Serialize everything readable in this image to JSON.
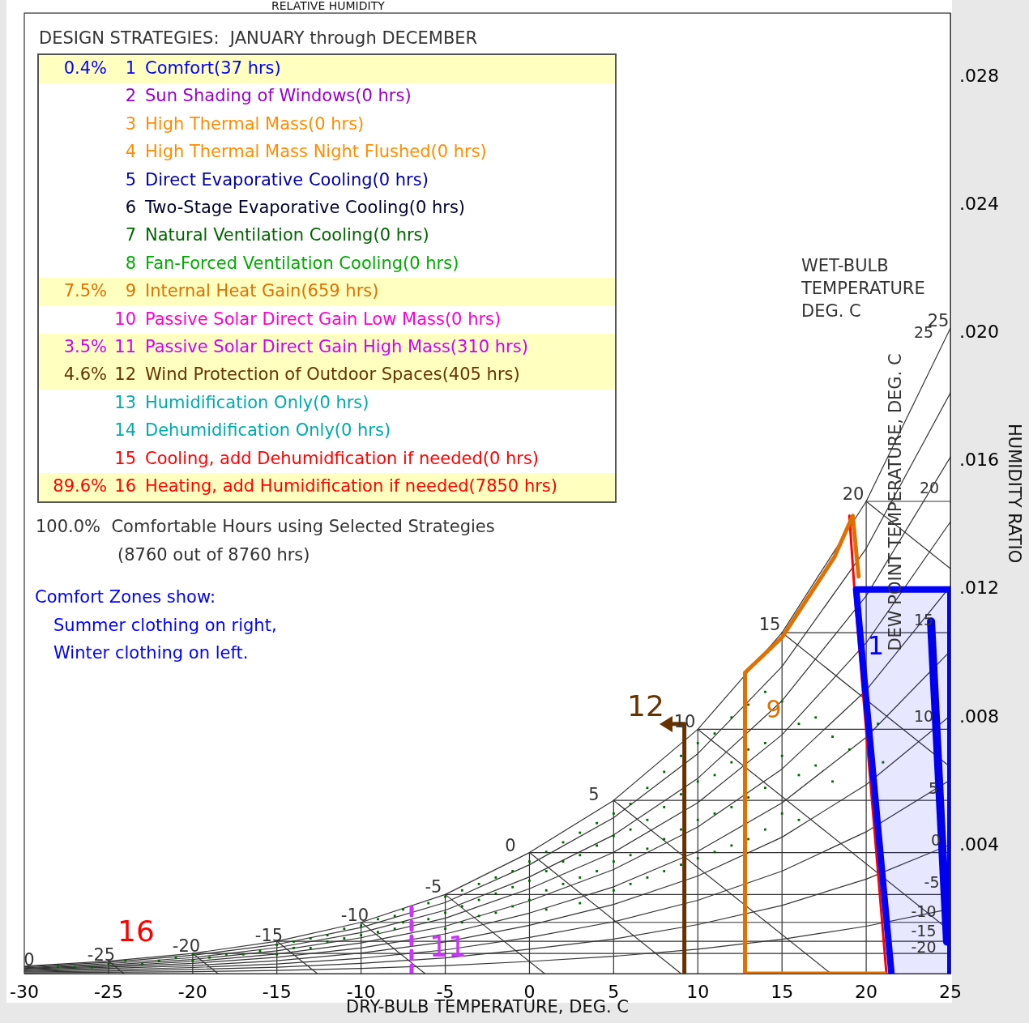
{
  "chart_data": {
    "type": "line",
    "xlabel": "DRY-BULB TEMPERATURE, DEG. C",
    "ylabel": "HUMIDITY RATIO",
    "xlim": [
      -30,
      25
    ],
    "xticks": [
      -30,
      -25,
      -20,
      -15,
      -10,
      -5,
      0,
      5,
      10,
      15,
      20,
      25
    ],
    "ylim": [
      0,
      0.03
    ],
    "yticks": [
      {
        "value": 0.004,
        "label": ".004"
      },
      {
        "value": 0.008,
        "label": ".008"
      },
      {
        "value": 0.012,
        "label": ".012"
      },
      {
        "value": 0.016,
        "label": ".016"
      },
      {
        "value": 0.02,
        "label": ".020"
      },
      {
        "value": 0.024,
        "label": ".024"
      },
      {
        "value": 0.028,
        "label": ".028"
      }
    ],
    "series": [
      {
        "color": "#333333",
        "x": [
          -30,
          -25,
          -20,
          -15,
          -10,
          -5,
          0,
          5,
          10,
          15,
          20,
          25
        ],
        "values": [
          0.00023,
          0.00039,
          0.00063,
          0.00101,
          0.0016,
          0.00247,
          0.00378,
          0.00541,
          0.00763,
          0.01065,
          0.01475,
          0.02016
        ]
      },
      {
        "color": "#333333",
        "x": [
          -30,
          -25,
          -20,
          -15,
          -10,
          -5,
          0,
          5,
          10,
          15,
          20,
          25
        ],
        "values": [
          2e-05,
          4e-05,
          6e-05,
          0.0001,
          0.00016,
          0.00025,
          0.00038,
          0.00054,
          0.00076,
          0.00107,
          0.00148,
          0.00202
        ]
      },
      {
        "color": "#333333",
        "x": [
          -30,
          -25,
          -20,
          -15,
          -10,
          -5,
          0,
          5,
          10,
          15,
          20,
          25
        ],
        "values": [
          5e-05,
          8e-05,
          0.00013,
          0.0002,
          0.00032,
          0.00049,
          0.00076,
          0.00108,
          0.00153,
          0.00213,
          0.00295,
          0.00403
        ]
      },
      {
        "color": "#333333",
        "x": [
          -30,
          -25,
          -20,
          -15,
          -10,
          -5,
          0,
          5,
          10,
          15,
          20,
          25
        ],
        "values": [
          7e-05,
          0.00012,
          0.00019,
          0.0003,
          0.00048,
          0.00074,
          0.00113,
          0.00162,
          0.00229,
          0.0032,
          0.00443,
          0.00605
        ]
      },
      {
        "color": "#333333",
        "x": [
          -30,
          -25,
          -20,
          -15,
          -10,
          -5,
          0,
          5,
          10,
          15,
          20,
          25
        ],
        "values": [
          9e-05,
          0.00016,
          0.00025,
          0.0004,
          0.00064,
          0.00099,
          0.00151,
          0.00216,
          0.00305,
          0.00426,
          0.0059,
          0.00806
        ]
      },
      {
        "color": "#333333",
        "x": [
          -30,
          -25,
          -20,
          -15,
          -10,
          -5,
          0,
          5,
          10,
          15,
          20,
          25
        ],
        "values": [
          0.00012,
          0.0002,
          0.00032,
          0.00051,
          0.0008,
          0.00124,
          0.00189,
          0.00271,
          0.00382,
          0.00533,
          0.00738,
          0.01008
        ]
      },
      {
        "color": "#333333",
        "x": [
          -30,
          -25,
          -20,
          -15,
          -10,
          -5,
          0,
          5,
          10,
          15,
          20,
          25
        ],
        "values": [
          0.00014,
          0.00023,
          0.00038,
          0.00061,
          0.00096,
          0.00148,
          0.00227,
          0.00325,
          0.00458,
          0.00639,
          0.00885,
          0.0121
        ]
      },
      {
        "color": "#333333",
        "x": [
          -30,
          -25,
          -20,
          -15,
          -10,
          -5,
          0,
          5,
          10,
          15,
          20,
          25
        ],
        "values": [
          0.00016,
          0.00027,
          0.00044,
          0.00071,
          0.00112,
          0.00173,
          0.00265,
          0.00379,
          0.00534,
          0.00746,
          0.01033,
          0.01411
        ]
      },
      {
        "color": "#333333",
        "x": [
          -30,
          -25,
          -20,
          -15,
          -10,
          -5,
          0,
          5,
          10,
          15,
          20,
          25
        ],
        "values": [
          0.00018,
          0.00031,
          0.0005,
          0.00081,
          0.00128,
          0.00198,
          0.00302,
          0.00433,
          0.0061,
          0.00852,
          0.0118,
          0.01613
        ]
      },
      {
        "color": "#333333",
        "x": [
          -30,
          -25,
          -20,
          -15,
          -10,
          -5,
          0,
          5,
          10,
          15,
          20,
          25
        ],
        "values": [
          0.00021,
          0.00035,
          0.00057,
          0.00091,
          0.00144,
          0.00222,
          0.0034,
          0.00487,
          0.00687,
          0.00959,
          0.01328,
          0.01814
        ]
      },
      {
        "color": "#333333",
        "x": [
          -25,
          -24.1
        ],
        "values": [
          0.00039,
          0
        ]
      },
      {
        "color": "#333333",
        "x": [
          -20,
          -18.5
        ],
        "values": [
          0.00063,
          0
        ]
      },
      {
        "color": "#333333",
        "x": [
          -15,
          -12.6
        ],
        "values": [
          0.00101,
          0
        ]
      },
      {
        "color": "#333333",
        "x": [
          -10,
          -6.2
        ],
        "values": [
          0.0016,
          0
        ]
      },
      {
        "color": "#333333",
        "x": [
          -5,
          0.9
        ],
        "values": [
          0.00247,
          0
        ]
      },
      {
        "color": "#333333",
        "x": [
          0,
          9
        ],
        "values": [
          0.00378,
          0
        ]
      },
      {
        "color": "#333333",
        "x": [
          5,
          17.9
        ],
        "values": [
          0.00541,
          0
        ]
      },
      {
        "color": "#333333",
        "x": [
          10,
          25
        ],
        "values": [
          0.00763,
          0.00133
        ]
      },
      {
        "color": "#333333",
        "x": [
          15,
          25
        ],
        "values": [
          0.01065,
          0.00645
        ]
      },
      {
        "color": "#333333",
        "x": [
          20,
          25
        ],
        "values": [
          0.01475,
          0.01265
        ]
      },
      {
        "color": "#333333",
        "x": [
          -20,
          25
        ],
        "values": [
          0.00063,
          0.00063
        ]
      },
      {
        "color": "#333333",
        "x": [
          -15,
          25
        ],
        "values": [
          0.00101,
          0.00101
        ]
      },
      {
        "color": "#333333",
        "x": [
          -10,
          25
        ],
        "values": [
          0.0016,
          0.0016
        ]
      },
      {
        "color": "#333333",
        "x": [
          -5,
          25
        ],
        "values": [
          0.00247,
          0.00247
        ]
      },
      {
        "color": "#333333",
        "x": [
          0,
          25
        ],
        "values": [
          0.00378,
          0.00378
        ]
      },
      {
        "color": "#333333",
        "x": [
          5,
          25
        ],
        "values": [
          0.00541,
          0.00541
        ]
      },
      {
        "color": "#333333",
        "x": [
          10,
          25
        ],
        "values": [
          0.00763,
          0.00763
        ]
      },
      {
        "color": "#333333",
        "x": [
          15,
          25
        ],
        "values": [
          0.01065,
          0.01065
        ]
      },
      {
        "color": "#333333",
        "x": [
          20,
          25
        ],
        "values": [
          0.01475,
          0.01475
        ]
      },
      {
        "color": "#333333",
        "x": [
          -25,
          -25
        ],
        "values": [
          0,
          0.00039
        ]
      },
      {
        "color": "#333333",
        "x": [
          -20,
          -20
        ],
        "values": [
          0,
          0.00063
        ]
      },
      {
        "color": "#333333",
        "x": [
          -15,
          -15
        ],
        "values": [
          0,
          0.00101
        ]
      },
      {
        "color": "#333333",
        "x": [
          -10,
          -10
        ],
        "values": [
          0,
          0.0016
        ]
      },
      {
        "color": "#333333",
        "x": [
          -5,
          -5
        ],
        "values": [
          0,
          0.00247
        ]
      },
      {
        "color": "#333333",
        "x": [
          0,
          0
        ],
        "values": [
          0,
          0.00378
        ]
      },
      {
        "color": "#333333",
        "x": [
          5,
          5
        ],
        "values": [
          0,
          0.00541
        ]
      },
      {
        "color": "#333333",
        "x": [
          10,
          10
        ],
        "values": [
          0,
          0.00763
        ]
      },
      {
        "color": "#333333",
        "x": [
          15,
          15
        ],
        "values": [
          0,
          0.01065
        ]
      },
      {
        "color": "#333333",
        "x": [
          20,
          20
        ],
        "values": [
          0,
          0.01475
        ]
      },
      {
        "type": "scatter",
        "color": "#006400",
        "marker": "square",
        "x": [
          -28,
          -27,
          -26,
          -25,
          -24,
          -23,
          -22,
          -21,
          -20,
          -20,
          -19,
          -18,
          -17,
          -16,
          -15,
          -15,
          -14,
          -14,
          -13,
          -13,
          -12,
          -12,
          -11,
          -11,
          -10,
          -10,
          -9,
          -9,
          -8,
          -8,
          -7.5,
          -7.5,
          -6,
          -6,
          -5,
          -5,
          -5,
          -4,
          -4,
          -4,
          -3,
          -3,
          -3,
          -2,
          -2,
          -2,
          -1,
          -1,
          -1,
          0,
          0,
          0,
          1,
          1,
          1,
          1,
          2,
          2,
          2,
          3,
          3,
          3,
          3,
          4,
          4,
          4,
          5,
          5,
          5,
          5,
          6,
          6,
          6,
          6,
          7,
          7,
          7,
          7,
          8,
          8,
          8,
          8,
          9,
          9,
          9,
          9,
          10,
          10,
          10,
          10,
          11,
          11,
          11,
          11,
          12,
          12,
          12,
          12,
          13,
          13,
          13,
          13,
          14,
          14,
          14,
          14,
          15,
          15,
          15,
          16,
          16,
          16,
          17,
          17,
          18,
          18,
          19,
          20.7,
          21
        ],
        "values": [
          0.0002,
          0.0002,
          0.0002,
          0.0003,
          0.0004,
          0.0003,
          0.0004,
          0.0005,
          0.0004,
          0.0006,
          0.0005,
          0.0006,
          0.0006,
          0.0007,
          0.0009,
          0.0006,
          0.001,
          0.0008,
          0.0011,
          0.0008,
          0.0012,
          0.001,
          0.0014,
          0.0011,
          0.0015,
          0.0012,
          0.0017,
          0.0013,
          0.0018,
          0.0014,
          0.002,
          0.0016,
          0.0022,
          0.0017,
          0.0024,
          0.0019,
          0.0014,
          0.0026,
          0.0021,
          0.0016,
          0.0028,
          0.0023,
          0.0018,
          0.003,
          0.0025,
          0.0019,
          0.0032,
          0.0027,
          0.0021,
          0.0035,
          0.0029,
          0.0023,
          0.0038,
          0.0032,
          0.0026,
          0.002,
          0.0041,
          0.0035,
          0.0028,
          0.0044,
          0.0037,
          0.003,
          0.0022,
          0.0047,
          0.004,
          0.0032,
          0.005,
          0.0043,
          0.0035,
          0.0026,
          0.0053,
          0.0045,
          0.0037,
          0.0028,
          0.0058,
          0.0048,
          0.0039,
          0.003,
          0.0063,
          0.0052,
          0.0042,
          0.0032,
          0.0068,
          0.0056,
          0.0045,
          0.0034,
          0.0072,
          0.006,
          0.0048,
          0.0036,
          0.0075,
          0.0062,
          0.005,
          0.0038,
          0.008,
          0.0066,
          0.0052,
          0.004,
          0.0084,
          0.007,
          0.0055,
          0.0042,
          0.0088,
          0.0072,
          0.0058,
          0.0045,
          0.0085,
          0.0068,
          0.005,
          0.0078,
          0.0062,
          0.0048,
          0.008,
          0.0065,
          0.0074,
          0.006,
          0.007,
          0.0078,
          0.0066
        ]
      },
      {
        "color": "#ff0000",
        "x": [
          19,
          19.3,
          21.2
        ],
        "values": [
          0.0143,
          0.012,
          0
        ]
      },
      {
        "color": "#e07000",
        "x": [
          21.1,
          12.8,
          12.8,
          15,
          18.1,
          19.2,
          19.55
        ],
        "values": [
          0,
          0,
          0.0094,
          0.0105,
          0.013,
          0.0143,
          0.0124
        ]
      },
      {
        "type": "area",
        "color": "#0000ff",
        "x": [
          21.5,
          19.4,
          25,
          25,
          21.5
        ],
        "values": [
          0,
          0.012,
          0.012,
          0,
          0
        ]
      },
      {
        "color": "#0000ee",
        "x": [
          23.85,
          24.8
        ],
        "values": [
          0.011,
          0.001
        ]
      },
      {
        "color": "#663300",
        "x": [
          9.2,
          9.2,
          8.4
        ],
        "values": [
          0,
          0.0078,
          0.0078
        ]
      },
      {
        "color": "#cc33ff",
        "line_style": "dashed",
        "x": [
          -7,
          -7
        ],
        "values": [
          0,
          0.0022
        ]
      }
    ],
    "annotations": [
      "RELATIVE HUMIDITY",
      "DESIGN STRATEGIES:  JANUARY through DECEMBER",
      "0.4% 1 Comfort(37 hrs)",
      "2 Sun Shading of Windows(0 hrs)",
      "3 High Thermal Mass(0 hrs)",
      "4 High Thermal Mass Night Flushed(0 hrs)",
      "5 Direct Evaporative Cooling(0 hrs)",
      "6 Two-Stage Evaporative Cooling(0 hrs)",
      "7 Natural Ventilation Cooling(0 hrs)",
      "8 Fan-Forced Ventilation Cooling(0 hrs)",
      "7.5% 9 Internal Heat Gain(659 hrs)",
      "10 Passive Solar Direct Gain Low Mass(0 hrs)",
      "3.5% 11 Passive Solar Direct Gain High Mass(310 hrs)",
      "4.6% 12 Wind Protection of Outdoor Spaces(405 hrs)",
      "13 Humidification Only(0 hrs)",
      "14 Dehumidification Only(0 hrs)",
      "15 Cooling, add Dehumidfication if needed(0 hrs)",
      "89.6% 16 Heating, add Humidification if needed(7850 hrs)",
      "100.0%  Comfortable Hours using Selected Strategies",
      "(8760 out of 8760 hrs)",
      "Comfort Zones show:",
      "Summer clothing on right,",
      "Winter clothing on left.",
      "WET-BULB",
      "TEMPERATURE",
      "DEG. C",
      "DEW POINT TEMPERATURE, DEG. C",
      "1",
      "9",
      "12",
      "11",
      "16",
      "25",
      "20",
      "15",
      "10",
      "5",
      "0",
      "-5",
      "-10",
      "-15",
      "-20",
      "-25",
      "0",
      "25",
      "20",
      "15",
      "10",
      "5",
      "0",
      "-5",
      "-10",
      "-15",
      "-20"
    ]
  }
}
